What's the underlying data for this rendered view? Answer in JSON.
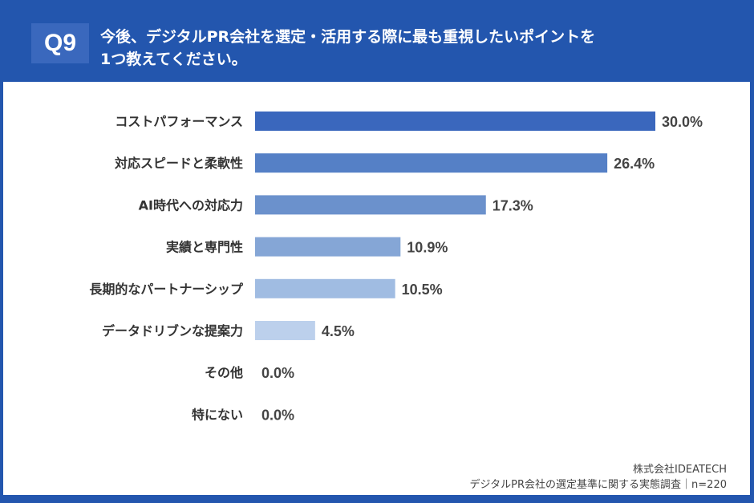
{
  "header": {
    "badge": "Q9",
    "title_line1": "今後、デジタルPR会社を選定・活用する際に最も重視したいポイントを",
    "title_line2": "1つ教えてください。"
  },
  "footer": {
    "company": "株式会社IDEATECH",
    "survey": "デジタルPR会社の選定基準に関する実態調査｜n=220"
  },
  "colors": {
    "background": "#2356ae",
    "bars": [
      "#3a67bd",
      "#5580c6",
      "#6b91cc",
      "#85a6d6",
      "#a0bce2",
      "#bcd0ec",
      "#bcd0ec",
      "#bcd0ec"
    ]
  },
  "chart_data": {
    "type": "bar",
    "orientation": "horizontal",
    "unit": "%",
    "categories": [
      "コストパフォーマンス",
      "対応スピードと柔軟性",
      "AI時代への対応力",
      "実績と専門性",
      "長期的なパートナーシップ",
      "データドリブンな提案力",
      "その他",
      "特にない"
    ],
    "values": [
      30.0,
      26.4,
      17.3,
      10.9,
      10.5,
      4.5,
      0.0,
      0.0
    ],
    "labels": [
      "30.0%",
      "26.4%",
      "17.3%",
      "10.9%",
      "10.5%",
      "4.5%",
      "0.0%",
      "0.0%"
    ],
    "xlim": [
      0,
      30
    ],
    "grid": false
  }
}
